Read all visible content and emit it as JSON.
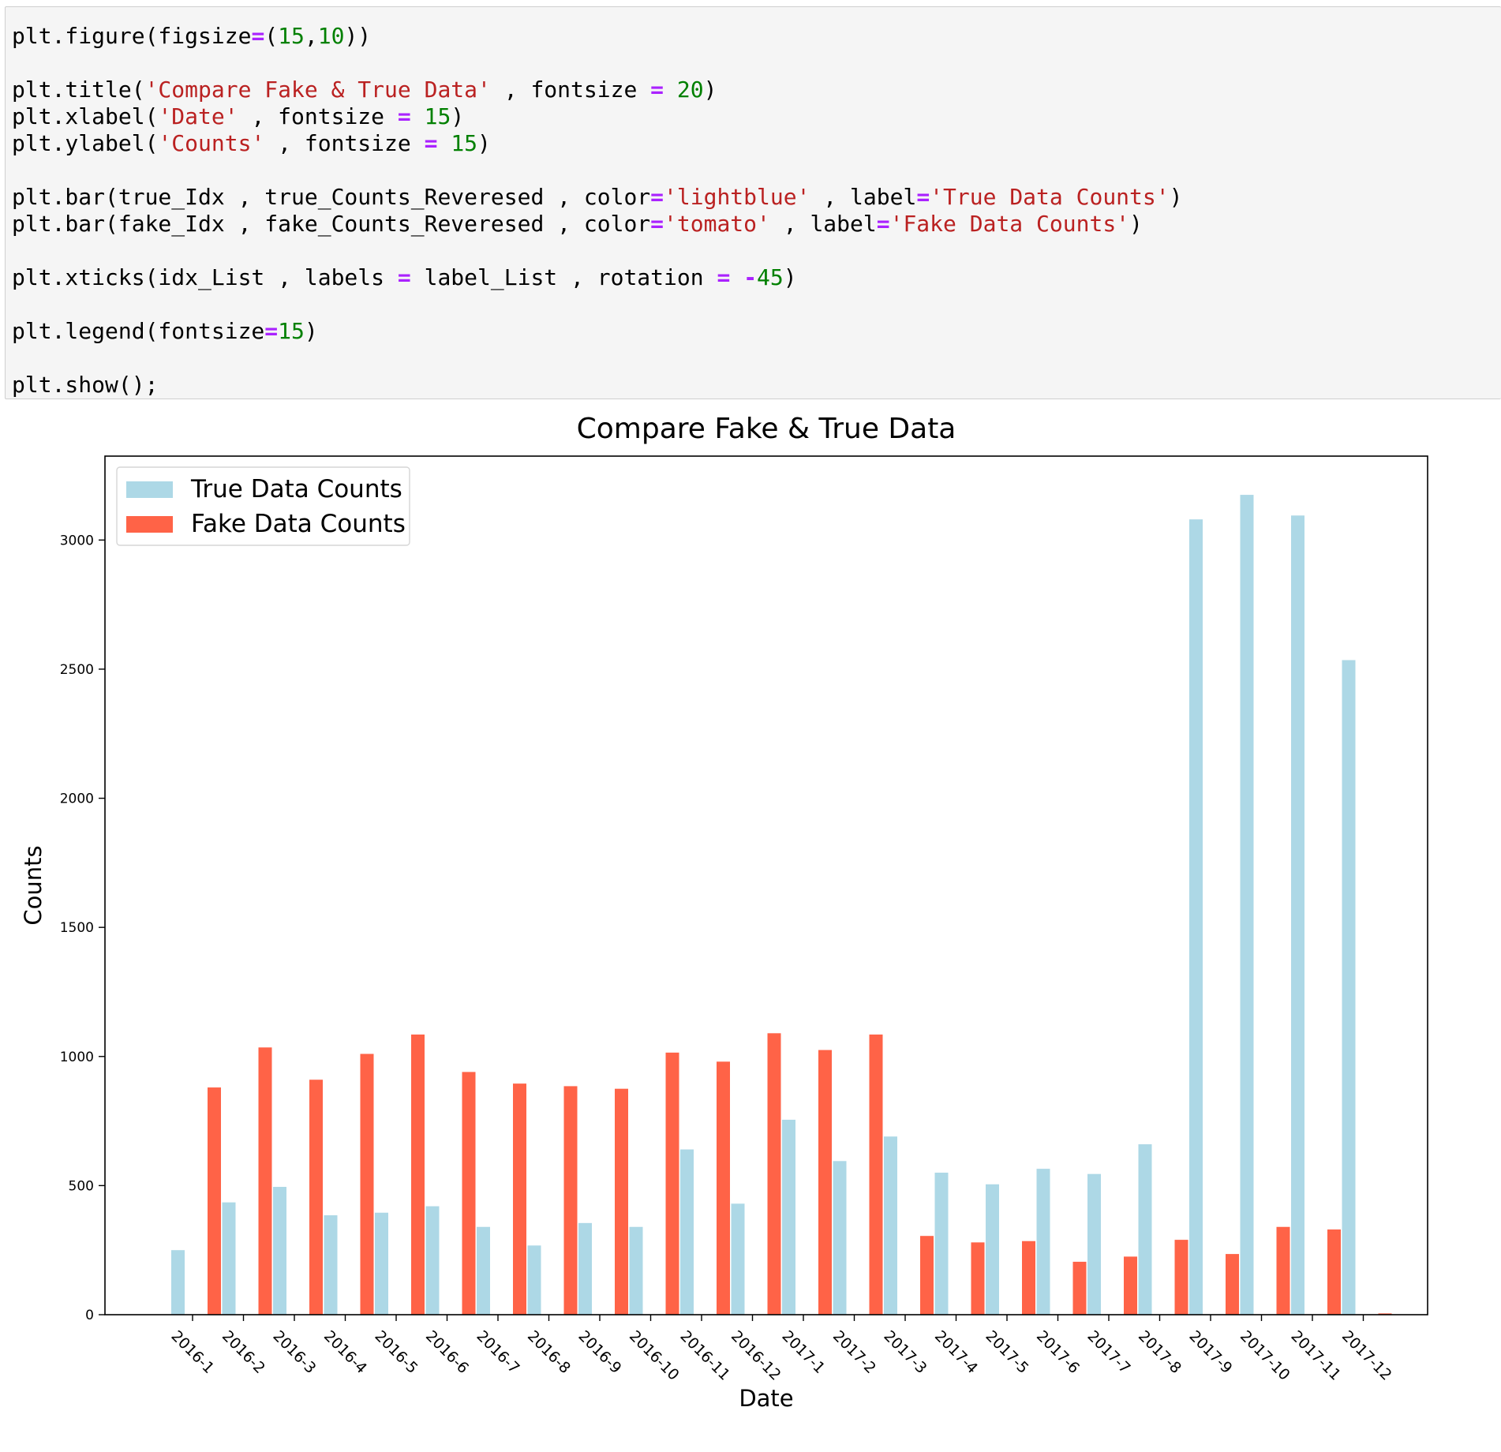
{
  "code_cell": {
    "lines": [
      [
        {
          "t": "plt.figure(figsize",
          "k": "plain"
        },
        {
          "t": "=",
          "k": "op"
        },
        {
          "t": "(",
          "k": "plain"
        },
        {
          "t": "15",
          "k": "num"
        },
        {
          "t": ",",
          "k": "plain"
        },
        {
          "t": "10",
          "k": "num"
        },
        {
          "t": "))",
          "k": "plain"
        }
      ],
      [],
      [
        {
          "t": "plt.title(",
          "k": "plain"
        },
        {
          "t": "'Compare Fake & True Data'",
          "k": "str"
        },
        {
          "t": " , fontsize ",
          "k": "plain"
        },
        {
          "t": "=",
          "k": "op"
        },
        {
          "t": " ",
          "k": "plain"
        },
        {
          "t": "20",
          "k": "num"
        },
        {
          "t": ")",
          "k": "plain"
        }
      ],
      [
        {
          "t": "plt.xlabel(",
          "k": "plain"
        },
        {
          "t": "'Date'",
          "k": "str"
        },
        {
          "t": " , fontsize ",
          "k": "plain"
        },
        {
          "t": "=",
          "k": "op"
        },
        {
          "t": " ",
          "k": "plain"
        },
        {
          "t": "15",
          "k": "num"
        },
        {
          "t": ")",
          "k": "plain"
        }
      ],
      [
        {
          "t": "plt.ylabel(",
          "k": "plain"
        },
        {
          "t": "'Counts'",
          "k": "str"
        },
        {
          "t": " , fontsize ",
          "k": "plain"
        },
        {
          "t": "=",
          "k": "op"
        },
        {
          "t": " ",
          "k": "plain"
        },
        {
          "t": "15",
          "k": "num"
        },
        {
          "t": ")",
          "k": "plain"
        }
      ],
      [],
      [
        {
          "t": "plt.bar(true_Idx , true_Counts_Reveresed , color",
          "k": "plain"
        },
        {
          "t": "=",
          "k": "op"
        },
        {
          "t": "'lightblue'",
          "k": "str"
        },
        {
          "t": " , label",
          "k": "plain"
        },
        {
          "t": "=",
          "k": "op"
        },
        {
          "t": "'True Data Counts'",
          "k": "str"
        },
        {
          "t": ")",
          "k": "plain"
        }
      ],
      [
        {
          "t": "plt.bar(fake_Idx , fake_Counts_Reveresed , color",
          "k": "plain"
        },
        {
          "t": "=",
          "k": "op"
        },
        {
          "t": "'tomato'",
          "k": "str"
        },
        {
          "t": " , label",
          "k": "plain"
        },
        {
          "t": "=",
          "k": "op"
        },
        {
          "t": "'Fake Data Counts'",
          "k": "str"
        },
        {
          "t": ")",
          "k": "plain"
        }
      ],
      [],
      [
        {
          "t": "plt.xticks(idx_List , labels ",
          "k": "plain"
        },
        {
          "t": "=",
          "k": "op"
        },
        {
          "t": " label_List , rotation ",
          "k": "plain"
        },
        {
          "t": "=",
          "k": "op"
        },
        {
          "t": " ",
          "k": "plain"
        },
        {
          "t": "-",
          "k": "op"
        },
        {
          "t": "45",
          "k": "num"
        },
        {
          "t": ")",
          "k": "plain"
        }
      ],
      [],
      [
        {
          "t": "plt.legend(fontsize",
          "k": "plain"
        },
        {
          "t": "=",
          "k": "op"
        },
        {
          "t": "15",
          "k": "num"
        },
        {
          "t": ")",
          "k": "plain"
        }
      ],
      [],
      [
        {
          "t": "plt.show();",
          "k": "plain"
        }
      ]
    ]
  },
  "chart_data": {
    "type": "bar",
    "title": "Compare Fake & True Data",
    "xlabel": "Date",
    "ylabel": "Counts",
    "categories": [
      "2016-1",
      "2016-2",
      "2016-3",
      "2016-4",
      "2016-5",
      "2016-6",
      "2016-7",
      "2016-8",
      "2016-9",
      "2016-10",
      "2016-11",
      "2016-12",
      "2017-1",
      "2017-2",
      "2017-3",
      "2017-4",
      "2017-5",
      "2017-6",
      "2017-7",
      "2017-8",
      "2017-9",
      "2017-10",
      "2017-11",
      "2017-12"
    ],
    "series": [
      {
        "name": "True Data Counts",
        "color": "#add8e6",
        "values": [
          250,
          435,
          495,
          385,
          395,
          420,
          340,
          268,
          355,
          340,
          640,
          430,
          755,
          595,
          690,
          550,
          505,
          565,
          545,
          660,
          3080,
          3175,
          3095,
          2535
        ]
      },
      {
        "name": "Fake Data Counts",
        "color": "#ff6347",
        "values": [
          880,
          1035,
          910,
          1010,
          1085,
          940,
          895,
          885,
          875,
          1015,
          980,
          1090,
          1025,
          1085,
          305,
          280,
          285,
          205,
          225,
          290,
          235,
          340,
          330,
          5
        ]
      }
    ],
    "yticks": [
      0,
      500,
      1000,
      1500,
      2000,
      2500,
      3000
    ],
    "ylim": [
      0,
      3325
    ],
    "legend_position": "upper left",
    "grid": false
  }
}
